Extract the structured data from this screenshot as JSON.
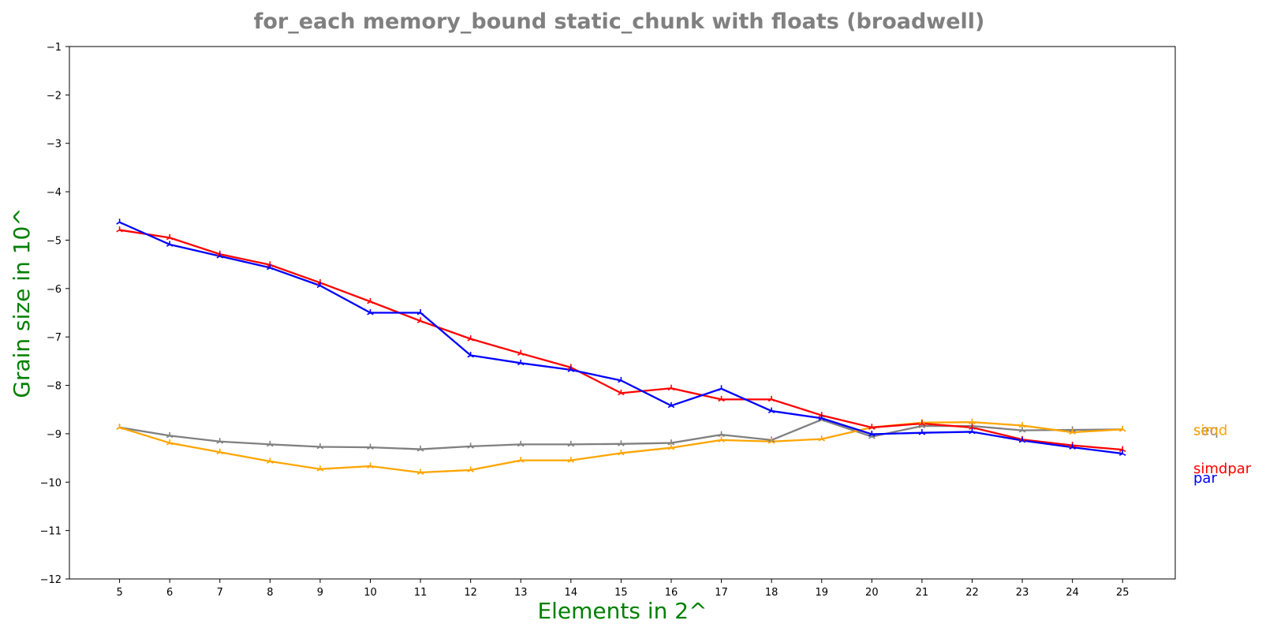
{
  "chart_data": {
    "type": "line",
    "title": "for_each memory_bound static_chunk with floats  (broadwell)",
    "xlabel": "Elements in 2^",
    "ylabel": "Grain size in 10^",
    "x": [
      5,
      6,
      7,
      8,
      9,
      10,
      11,
      12,
      13,
      14,
      15,
      16,
      17,
      18,
      19,
      20,
      21,
      22,
      23,
      24,
      25
    ],
    "xlim": [
      4,
      26.05
    ],
    "ylim": [
      -12,
      -1
    ],
    "yticks": [
      -1,
      -2,
      -3,
      -4,
      -5,
      -6,
      -7,
      -8,
      -9,
      -10,
      -11,
      -12
    ],
    "grid": false,
    "legend": "inline labels right of plot",
    "series": [
      {
        "name": "seq",
        "color": "#808080",
        "marker": "tri-star",
        "values": [
          -8.87,
          -9.04,
          -9.16,
          -9.22,
          -9.27,
          -9.28,
          -9.32,
          -9.26,
          -9.22,
          -9.22,
          -9.21,
          -9.19,
          -9.02,
          -9.13,
          -8.71,
          -9.06,
          -8.84,
          -8.84,
          -8.93,
          -8.92,
          -8.91
        ]
      },
      {
        "name": "simd",
        "color": "#FFA500",
        "marker": "tri-star",
        "values": [
          -8.87,
          -9.19,
          -9.38,
          -9.57,
          -9.73,
          -9.67,
          -9.8,
          -9.75,
          -9.55,
          -9.55,
          -9.4,
          -9.29,
          -9.13,
          -9.16,
          -9.11,
          -8.87,
          -8.77,
          -8.76,
          -8.83,
          -8.97,
          -8.91
        ]
      },
      {
        "name": "simdpar",
        "color": "#FF0000",
        "marker": "tri-star",
        "values": [
          -4.79,
          -4.95,
          -5.29,
          -5.51,
          -5.88,
          -6.27,
          -6.67,
          -7.04,
          -7.34,
          -7.63,
          -8.16,
          -8.06,
          -8.29,
          -8.29,
          -8.62,
          -8.87,
          -8.79,
          -8.87,
          -9.12,
          -9.24,
          -9.33
        ]
      },
      {
        "name": "par",
        "color": "#0000FF",
        "marker": "tri-star",
        "values": [
          -4.63,
          -5.09,
          -5.33,
          -5.57,
          -5.94,
          -6.5,
          -6.5,
          -7.38,
          -7.54,
          -7.68,
          -7.9,
          -8.42,
          -8.07,
          -8.53,
          -8.68,
          -9.01,
          -8.98,
          -8.96,
          -9.14,
          -9.28,
          -9.41
        ]
      }
    ]
  }
}
